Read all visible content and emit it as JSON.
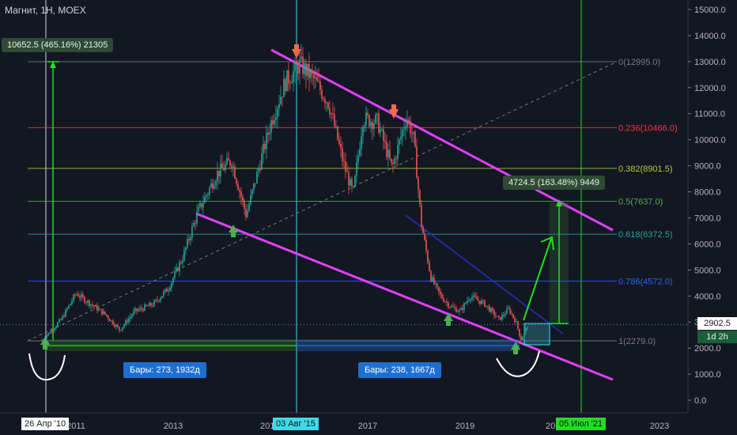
{
  "header": {
    "title": "Магнит, 1H, MOEX"
  },
  "colors": {
    "background": "#131722",
    "up": "#26a69a",
    "down": "#ef5350",
    "channel": "#e040fb",
    "trend_blue": "#2130c8",
    "arrow_green": "#22dd22"
  },
  "chart_data": {
    "type": "candlestick",
    "title": "Магнит, 1H, MOEX",
    "y_ticks": [
      "15000.0",
      "14000.0",
      "13000.0",
      "12000.0",
      "11000.0",
      "10000.0",
      "9000.0",
      "8000.0",
      "7000.0",
      "6000.0",
      "5000.0",
      "4000.0",
      "3000.0",
      "2000.0",
      "1000.0",
      "0.0"
    ],
    "x_ticks": [
      "2011",
      "2013",
      "2017",
      "2019",
      "2023"
    ],
    "ylim": [
      -800,
      15500
    ],
    "price_path": [
      [
        2010.3,
        2300
      ],
      [
        2010.7,
        3100
      ],
      [
        2011.0,
        4100
      ],
      [
        2011.3,
        3700
      ],
      [
        2011.6,
        3300
      ],
      [
        2011.9,
        2700
      ],
      [
        2012.2,
        3400
      ],
      [
        2012.6,
        3700
      ],
      [
        2012.9,
        4300
      ],
      [
        2013.2,
        5500
      ],
      [
        2013.5,
        7200
      ],
      [
        2013.9,
        8700
      ],
      [
        2014.2,
        9200
      ],
      [
        2014.5,
        7100
      ],
      [
        2014.8,
        9200
      ],
      [
        2015.0,
        10600
      ],
      [
        2015.3,
        12200
      ],
      [
        2015.6,
        12900
      ],
      [
        2015.9,
        12300
      ],
      [
        2016.2,
        11400
      ],
      [
        2016.5,
        9100
      ],
      [
        2016.7,
        7900
      ],
      [
        2016.9,
        10800
      ],
      [
        2017.2,
        10700
      ],
      [
        2017.5,
        8900
      ],
      [
        2017.8,
        10900
      ],
      [
        2017.95,
        10000
      ],
      [
        2018.1,
        6800
      ],
      [
        2018.3,
        4700
      ],
      [
        2018.5,
        4000
      ],
      [
        2018.7,
        3600
      ],
      [
        2018.9,
        3400
      ],
      [
        2019.1,
        4000
      ],
      [
        2019.4,
        3700
      ],
      [
        2019.7,
        3100
      ],
      [
        2019.9,
        3500
      ],
      [
        2020.05,
        3000
      ],
      [
        2020.15,
        2330
      ],
      [
        2020.3,
        2902.5
      ]
    ],
    "fib_levels": [
      {
        "label": "0(12995.0)",
        "value": 12995,
        "color": "#787b86"
      },
      {
        "label": "0.236(10466.0)",
        "value": 10466,
        "color": "#f23645"
      },
      {
        "label": "0.382(8901.5)",
        "value": 8901.5,
        "color": "#b5c93b"
      },
      {
        "label": "0.5(7637.0)",
        "value": 7637,
        "color": "#4caf50"
      },
      {
        "label": "0.618(6372.5)",
        "value": 6372.5,
        "color": "#26a69a"
      },
      {
        "label": "0.786(4572.0)",
        "value": 4572,
        "color": "#2962ff"
      },
      {
        "label": "1(2279.0)",
        "value": 2279,
        "color": "#787b86"
      }
    ],
    "annotations": {
      "top_left_box": "10652.5 (465.16%) 21305",
      "right_box": "4724.5 (163.48%) 9449",
      "bars_left": "Бары: 273, 1932д",
      "bars_right": "Бары: 238, 1667д",
      "date_left": "26 Апр '10",
      "date_mid": "03 Авг '15",
      "date_right": "05 Июл '21",
      "x_label_partial_1": "201",
      "x_label_partial_2": "20",
      "current_price": "2902.5",
      "timeframe_tag": "1d 2h"
    }
  }
}
